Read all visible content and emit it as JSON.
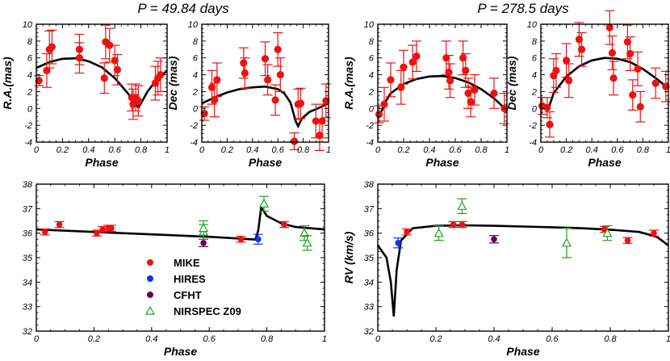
{
  "titles": [
    {
      "text": "P = 49.84 days"
    },
    {
      "text": "P = 278.5 days"
    }
  ],
  "colors": {
    "MIKE": "#ee1111",
    "HIRES": "#1133ee",
    "CFHT": "#660055",
    "NIRSPEC": "#22a022",
    "model": "#000000"
  },
  "legend": [
    {
      "label": "MIKE",
      "marker": "dot",
      "color": "#ee1111"
    },
    {
      "label": "HIRES",
      "marker": "dot",
      "color": "#1133ee"
    },
    {
      "label": "CFHT",
      "marker": "dot",
      "color": "#660055"
    },
    {
      "label": "NIRSPEC Z09",
      "marker": "triangle",
      "color": "#22a022"
    }
  ],
  "chart_data": [
    {
      "type": "scatter",
      "xlabel": "Phase",
      "ylabel": "R.A.(mas)",
      "xlim": [
        0,
        1
      ],
      "ylim": [
        -4,
        10
      ],
      "xticks": [
        "0",
        "0.2",
        "0.4",
        "0.6",
        "0.8",
        "1"
      ],
      "yticks": [
        "-4",
        "-2",
        "0",
        "2",
        "4",
        "6",
        "8",
        "10"
      ],
      "points": [
        {
          "x": 0.02,
          "y": 3.3,
          "e": 0.6
        },
        {
          "x": 0.08,
          "y": 4.5,
          "e": 2.0
        },
        {
          "x": 0.1,
          "y": 7.0,
          "e": 2.2
        },
        {
          "x": 0.12,
          "y": 7.3,
          "e": 2.0
        },
        {
          "x": 0.33,
          "y": 6.0,
          "e": 1.8
        },
        {
          "x": 0.33,
          "y": 7.0,
          "e": 1.8
        },
        {
          "x": 0.52,
          "y": 3.6,
          "e": 1.8
        },
        {
          "x": 0.53,
          "y": 7.9,
          "e": 2.0
        },
        {
          "x": 0.56,
          "y": 7.5,
          "e": 2.0
        },
        {
          "x": 0.6,
          "y": 5.7,
          "e": 1.8
        },
        {
          "x": 0.62,
          "y": 4.6,
          "e": 1.8
        },
        {
          "x": 0.73,
          "y": 1.3,
          "e": 1.6
        },
        {
          "x": 0.74,
          "y": 0.5,
          "e": 1.8
        },
        {
          "x": 0.76,
          "y": 1.3,
          "e": 1.6
        },
        {
          "x": 0.78,
          "y": 0.9,
          "e": 1.8
        },
        {
          "x": 0.91,
          "y": 3.0,
          "e": 2.0
        },
        {
          "x": 0.93,
          "y": 3.6,
          "e": 2.0
        },
        {
          "x": 0.95,
          "y": 4.0,
          "e": 2.0
        }
      ],
      "model": [
        [
          0,
          4.8
        ],
        [
          0.1,
          5.5
        ],
        [
          0.2,
          5.9
        ],
        [
          0.3,
          5.95
        ],
        [
          0.4,
          5.6
        ],
        [
          0.5,
          4.9
        ],
        [
          0.6,
          3.6
        ],
        [
          0.7,
          1.8
        ],
        [
          0.75,
          0.7
        ],
        [
          0.78,
          0.1
        ],
        [
          0.8,
          0.6
        ],
        [
          0.85,
          2.0
        ],
        [
          0.9,
          3.0
        ],
        [
          0.95,
          3.8
        ],
        [
          1.0,
          4.5
        ]
      ]
    },
    {
      "type": "scatter",
      "xlabel": "Phase",
      "ylabel": "Dec (mas)",
      "xlim": [
        0,
        1
      ],
      "ylim": [
        -4,
        10
      ],
      "xticks": [
        "0",
        "0.2",
        "0.4",
        "0.6",
        "0.8",
        "1"
      ],
      "yticks": [
        "-4",
        "-2",
        "0",
        "2",
        "4",
        "6",
        "8",
        "10"
      ],
      "points": [
        {
          "x": 0.02,
          "y": -0.6,
          "e": 0.8
        },
        {
          "x": 0.08,
          "y": 2.5,
          "e": 2.0
        },
        {
          "x": 0.1,
          "y": 1.0,
          "e": 2.0
        },
        {
          "x": 0.12,
          "y": 3.4,
          "e": 2.0
        },
        {
          "x": 0.33,
          "y": 5.4,
          "e": 1.8
        },
        {
          "x": 0.34,
          "y": 4.2,
          "e": 1.8
        },
        {
          "x": 0.5,
          "y": 5.9,
          "e": 2.0
        },
        {
          "x": 0.52,
          "y": 3.4,
          "e": 1.8
        },
        {
          "x": 0.58,
          "y": 1.0,
          "e": 1.8
        },
        {
          "x": 0.6,
          "y": 7.0,
          "e": 2.0
        },
        {
          "x": 0.62,
          "y": 4.0,
          "e": 2.0
        },
        {
          "x": 0.73,
          "y": -3.9,
          "e": 1.0
        },
        {
          "x": 0.76,
          "y": 0.5,
          "e": 1.8
        },
        {
          "x": 0.78,
          "y": 0.6,
          "e": 1.8
        },
        {
          "x": 0.9,
          "y": -1.5,
          "e": 2.0
        },
        {
          "x": 0.93,
          "y": -3.2,
          "e": 1.8
        },
        {
          "x": 0.95,
          "y": -1.5,
          "e": 2.0
        },
        {
          "x": 0.98,
          "y": 0.9,
          "e": 2.0
        }
      ],
      "model": [
        [
          0,
          0.6
        ],
        [
          0.1,
          1.3
        ],
        [
          0.2,
          1.9
        ],
        [
          0.3,
          2.3
        ],
        [
          0.4,
          2.5
        ],
        [
          0.5,
          2.6
        ],
        [
          0.6,
          2.3
        ],
        [
          0.65,
          1.8
        ],
        [
          0.7,
          0.7
        ],
        [
          0.74,
          -1.5
        ],
        [
          0.76,
          -2.1
        ],
        [
          0.79,
          -1.2
        ],
        [
          0.85,
          -0.4
        ],
        [
          0.9,
          -0.1
        ],
        [
          1.0,
          0.6
        ]
      ]
    },
    {
      "type": "scatter",
      "xlabel": "Phase",
      "ylabel": "R.A.(mas)",
      "xlim": [
        0,
        1
      ],
      "ylim": [
        -4,
        10
      ],
      "xticks": [
        "0",
        "0.2",
        "0.4",
        "0.6",
        "0.8",
        "1"
      ],
      "yticks": [
        "-4",
        "-2",
        "0",
        "2",
        "4",
        "6",
        "8",
        "10"
      ],
      "points": [
        {
          "x": 0.01,
          "y": -0.7,
          "e": 1.0
        },
        {
          "x": 0.05,
          "y": 0.5,
          "e": 2.0
        },
        {
          "x": 0.1,
          "y": 3.4,
          "e": 2.0
        },
        {
          "x": 0.18,
          "y": 2.5,
          "e": 2.0
        },
        {
          "x": 0.2,
          "y": 4.9,
          "e": 2.0
        },
        {
          "x": 0.27,
          "y": 5.5,
          "e": 2.0
        },
        {
          "x": 0.3,
          "y": 6.2,
          "e": 1.8
        },
        {
          "x": 0.53,
          "y": 6.0,
          "e": 2.0
        },
        {
          "x": 0.55,
          "y": 4.3,
          "e": 2.0
        },
        {
          "x": 0.56,
          "y": 3.3,
          "e": 2.0
        },
        {
          "x": 0.66,
          "y": 6.0,
          "e": 2.0
        },
        {
          "x": 0.68,
          "y": 4.5,
          "e": 2.0
        },
        {
          "x": 0.7,
          "y": 1.8,
          "e": 1.8
        },
        {
          "x": 0.72,
          "y": 0.8,
          "e": 1.8
        },
        {
          "x": 0.75,
          "y": 2.2,
          "e": 1.8
        },
        {
          "x": 0.9,
          "y": 1.8,
          "e": 1.8
        },
        {
          "x": 0.98,
          "y": 0.0,
          "e": 1.8
        }
      ],
      "model": [
        [
          0,
          -0.7
        ],
        [
          0.03,
          -0.3
        ],
        [
          0.06,
          0.8
        ],
        [
          0.1,
          1.8
        ],
        [
          0.2,
          2.9
        ],
        [
          0.3,
          3.5
        ],
        [
          0.4,
          3.8
        ],
        [
          0.5,
          3.85
        ],
        [
          0.6,
          3.6
        ],
        [
          0.7,
          3.1
        ],
        [
          0.8,
          2.3
        ],
        [
          0.9,
          1.2
        ],
        [
          0.97,
          0.2
        ],
        [
          1.0,
          -0.5
        ]
      ]
    },
    {
      "type": "scatter",
      "xlabel": "Phase",
      "ylabel": "Dec (mas)",
      "xlim": [
        0,
        1
      ],
      "ylim": [
        -4,
        10
      ],
      "xticks": [
        "0",
        "0.2",
        "0.4",
        "0.6",
        "0.8",
        "1"
      ],
      "yticks": [
        "-4",
        "-2",
        "0",
        "2",
        "4",
        "6",
        "8",
        "10"
      ],
      "points": [
        {
          "x": 0.01,
          "y": 0.3,
          "e": 1.0
        },
        {
          "x": 0.05,
          "y": 0.1,
          "e": 1.2
        },
        {
          "x": 0.07,
          "y": -1.9,
          "e": 1.5
        },
        {
          "x": 0.1,
          "y": 3.9,
          "e": 2.0
        },
        {
          "x": 0.12,
          "y": 4.5,
          "e": 2.0
        },
        {
          "x": 0.2,
          "y": 5.7,
          "e": 2.0
        },
        {
          "x": 0.22,
          "y": 3.3,
          "e": 2.0
        },
        {
          "x": 0.3,
          "y": 8.2,
          "e": 2.0
        },
        {
          "x": 0.32,
          "y": 7.0,
          "e": 2.0
        },
        {
          "x": 0.54,
          "y": 9.6,
          "e": 2.0
        },
        {
          "x": 0.56,
          "y": 6.6,
          "e": 2.0
        },
        {
          "x": 0.57,
          "y": 3.6,
          "e": 2.0
        },
        {
          "x": 0.68,
          "y": 7.9,
          "e": 2.0
        },
        {
          "x": 0.7,
          "y": 6.5,
          "e": 2.0
        },
        {
          "x": 0.72,
          "y": 1.6,
          "e": 1.8
        },
        {
          "x": 0.76,
          "y": 4.7,
          "e": 2.0
        },
        {
          "x": 0.78,
          "y": 0.2,
          "e": 1.8
        },
        {
          "x": 0.9,
          "y": 3.0,
          "e": 1.8
        },
        {
          "x": 0.98,
          "y": 2.6,
          "e": 1.8
        }
      ],
      "model": [
        [
          0,
          0.3
        ],
        [
          0.04,
          -0.1
        ],
        [
          0.06,
          0.0
        ],
        [
          0.1,
          1.8
        ],
        [
          0.2,
          3.8
        ],
        [
          0.3,
          5.0
        ],
        [
          0.4,
          5.7
        ],
        [
          0.5,
          6.0
        ],
        [
          0.6,
          5.9
        ],
        [
          0.7,
          5.5
        ],
        [
          0.8,
          4.7
        ],
        [
          0.9,
          3.6
        ],
        [
          1.0,
          2.4
        ]
      ]
    },
    {
      "type": "scatter",
      "xlabel": "Phase",
      "ylabel": "",
      "xlim": [
        0,
        1
      ],
      "ylim": [
        32,
        38
      ],
      "xticks": [
        "0",
        "0.2",
        "0.4",
        "0.6",
        "0.8",
        "1"
      ],
      "yticks": [
        "32",
        "33",
        "34",
        "35",
        "36",
        "37",
        "38"
      ],
      "points": [
        {
          "x": 0.03,
          "y": 36.05,
          "e": 0.12,
          "inst": "MIKE"
        },
        {
          "x": 0.08,
          "y": 36.35,
          "e": 0.12,
          "inst": "MIKE"
        },
        {
          "x": 0.21,
          "y": 36.0,
          "e": 0.12,
          "inst": "MIKE"
        },
        {
          "x": 0.23,
          "y": 36.15,
          "e": 0.12,
          "inst": "MIKE"
        },
        {
          "x": 0.25,
          "y": 36.2,
          "e": 0.12,
          "inst": "MIKE"
        },
        {
          "x": 0.26,
          "y": 36.2,
          "e": 0.12,
          "inst": "MIKE"
        },
        {
          "x": 0.71,
          "y": 35.75,
          "e": 0.12,
          "inst": "MIKE"
        },
        {
          "x": 0.86,
          "y": 36.35,
          "e": 0.12,
          "inst": "MIKE"
        },
        {
          "x": 0.77,
          "y": 35.75,
          "e": 0.2,
          "inst": "HIRES"
        },
        {
          "x": 0.58,
          "y": 35.6,
          "e": 0.15,
          "inst": "CFHT"
        },
        {
          "x": 0.58,
          "y": 36.05,
          "e": 0.3,
          "inst": "NIRSPEC"
        },
        {
          "x": 0.58,
          "y": 36.2,
          "e": 0.3,
          "inst": "NIRSPEC"
        },
        {
          "x": 0.79,
          "y": 37.2,
          "e": 0.3,
          "inst": "NIRSPEC"
        },
        {
          "x": 0.93,
          "y": 36.0,
          "e": 0.3,
          "inst": "NIRSPEC"
        },
        {
          "x": 0.94,
          "y": 35.6,
          "e": 0.3,
          "inst": "NIRSPEC"
        }
      ],
      "model": [
        [
          0,
          36.15
        ],
        [
          0.2,
          36.05
        ],
        [
          0.4,
          35.95
        ],
        [
          0.6,
          35.85
        ],
        [
          0.7,
          35.78
        ],
        [
          0.76,
          35.74
        ],
        [
          0.77,
          36.1
        ],
        [
          0.78,
          37.05
        ],
        [
          0.8,
          36.7
        ],
        [
          0.85,
          36.4
        ],
        [
          0.9,
          36.25
        ],
        [
          1.0,
          36.15
        ]
      ]
    },
    {
      "type": "scatter",
      "xlabel": "Phase",
      "ylabel": "RV (km/s)",
      "xlim": [
        0,
        1
      ],
      "ylim": [
        32,
        38
      ],
      "xticks": [
        "0",
        "0.2",
        "0.4",
        "0.6",
        "0.8",
        "1"
      ],
      "yticks": [
        "32",
        "33",
        "34",
        "35",
        "36",
        "37",
        "38"
      ],
      "points": [
        {
          "x": 0.1,
          "y": 36.05,
          "e": 0.12,
          "inst": "MIKE"
        },
        {
          "x": 0.26,
          "y": 36.35,
          "e": 0.12,
          "inst": "MIKE"
        },
        {
          "x": 0.29,
          "y": 36.35,
          "e": 0.12,
          "inst": "MIKE"
        },
        {
          "x": 0.78,
          "y": 36.15,
          "e": 0.12,
          "inst": "MIKE"
        },
        {
          "x": 0.86,
          "y": 35.7,
          "e": 0.12,
          "inst": "MIKE"
        },
        {
          "x": 0.95,
          "y": 36.0,
          "e": 0.12,
          "inst": "MIKE"
        },
        {
          "x": 0.07,
          "y": 35.6,
          "e": 0.2,
          "inst": "HIRES"
        },
        {
          "x": 0.4,
          "y": 35.75,
          "e": 0.15,
          "inst": "CFHT"
        },
        {
          "x": 0.21,
          "y": 36.0,
          "e": 0.3,
          "inst": "NIRSPEC"
        },
        {
          "x": 0.29,
          "y": 37.1,
          "e": 0.3,
          "inst": "NIRSPEC"
        },
        {
          "x": 0.65,
          "y": 35.6,
          "e": 0.6,
          "inst": "NIRSPEC"
        },
        {
          "x": 0.79,
          "y": 36.0,
          "e": 0.3,
          "inst": "NIRSPEC"
        }
      ],
      "model": [
        [
          0,
          35.5
        ],
        [
          0.03,
          35.0
        ],
        [
          0.045,
          34.0
        ],
        [
          0.055,
          32.6
        ],
        [
          0.065,
          34.5
        ],
        [
          0.08,
          35.7
        ],
        [
          0.12,
          36.2
        ],
        [
          0.2,
          36.3
        ],
        [
          0.3,
          36.32
        ],
        [
          0.4,
          36.3
        ],
        [
          0.5,
          36.27
        ],
        [
          0.6,
          36.24
        ],
        [
          0.7,
          36.2
        ],
        [
          0.8,
          36.14
        ],
        [
          0.9,
          36.05
        ],
        [
          0.96,
          35.85
        ],
        [
          1.0,
          35.5
        ]
      ]
    }
  ]
}
